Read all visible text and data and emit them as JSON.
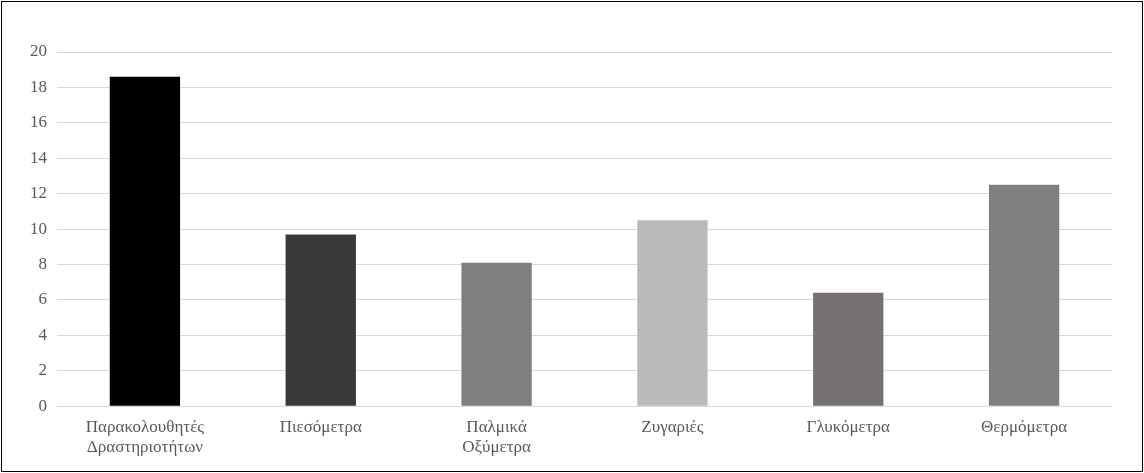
{
  "chart_data": {
    "type": "bar",
    "categories": [
      "Παρακολουθητές Δραστηριοτήτων",
      "Πιεσόμετρα",
      "Παλμικά Οξύμετρα",
      "Ζυγαριές",
      "Γλυκόμετρα",
      "Θερμόμετρα"
    ],
    "values": [
      18.6,
      9.7,
      8.1,
      10.5,
      6.4,
      12.5
    ],
    "colors": [
      "#000000",
      "#3a3838",
      "#7f7f7f",
      "#bababa",
      "#767171",
      "#7f7f7f"
    ],
    "ylim": [
      0,
      20
    ],
    "yticks": [
      0,
      2,
      4,
      6,
      8,
      10,
      12,
      14,
      16,
      18,
      20
    ],
    "grid": "y",
    "legend": false
  }
}
